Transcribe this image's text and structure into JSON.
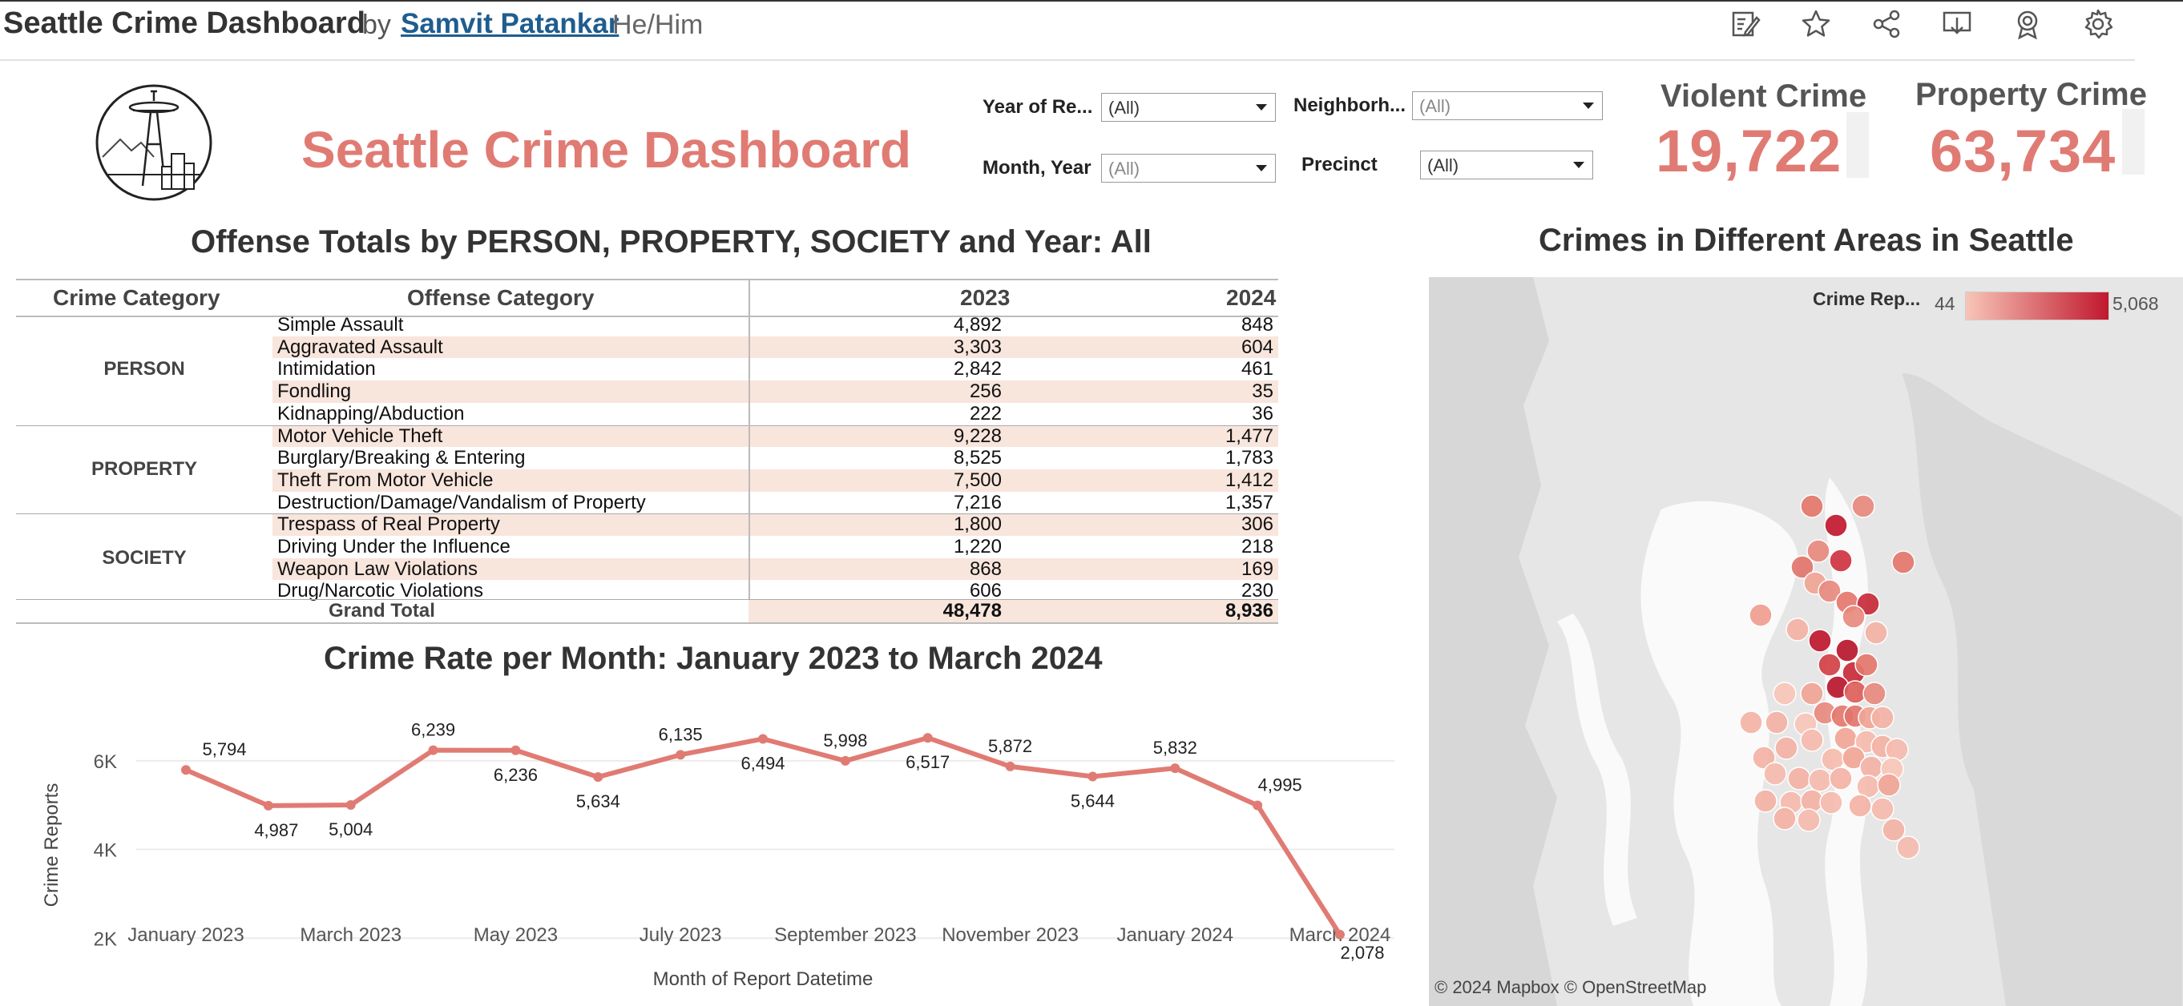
{
  "header": {
    "workbook_title": "Seattle Crime Dashboard",
    "by": "by",
    "author": "Samvit Patankar",
    "pronouns": "He/Him",
    "toolbar_icons": [
      "edit-icon",
      "star-icon",
      "share-icon",
      "download-icon",
      "badge-icon",
      "gear-icon"
    ]
  },
  "dashboard": {
    "title": "Seattle Crime Dashboard",
    "accent_color": "#e07b74"
  },
  "filters": {
    "year": {
      "label": "Year of Re...",
      "value": "(All)"
    },
    "month": {
      "label": "Month, Year",
      "value": "(All)"
    },
    "neighborhood": {
      "label": "Neighborh...",
      "value": "(All)"
    },
    "precinct": {
      "label": "Precinct",
      "value": "(All)"
    }
  },
  "kpis": {
    "violent": {
      "label": "Violent Crime",
      "value": "19,722"
    },
    "property": {
      "label": "Property Crime",
      "value": "63,734"
    }
  },
  "table": {
    "title": "Offense Totals by PERSON, PROPERTY, SOCIETY and Year: All",
    "headers": {
      "crime_category": "Crime Category",
      "offense_category": "Offense Category",
      "y2023": "2023",
      "y2024": "2024"
    },
    "groups": [
      {
        "category": "PERSON",
        "rows": [
          {
            "offense": "Simple Assault",
            "v2023": "4,892",
            "v2024": "848"
          },
          {
            "offense": "Aggravated Assault",
            "v2023": "3,303",
            "v2024": "604"
          },
          {
            "offense": "Intimidation",
            "v2023": "2,842",
            "v2024": "461"
          },
          {
            "offense": "Fondling",
            "v2023": "256",
            "v2024": "35"
          },
          {
            "offense": "Kidnapping/Abduction",
            "v2023": "222",
            "v2024": "36"
          }
        ]
      },
      {
        "category": "PROPERTY",
        "rows": [
          {
            "offense": "Motor Vehicle Theft",
            "v2023": "9,228",
            "v2024": "1,477"
          },
          {
            "offense": "Burglary/Breaking & Entering",
            "v2023": "8,525",
            "v2024": "1,783"
          },
          {
            "offense": "Theft From Motor Vehicle",
            "v2023": "7,500",
            "v2024": "1,412"
          },
          {
            "offense": "Destruction/Damage/Vandalism of Property",
            "v2023": "7,216",
            "v2024": "1,357"
          }
        ]
      },
      {
        "category": "SOCIETY",
        "rows": [
          {
            "offense": "Trespass of Real Property",
            "v2023": "1,800",
            "v2024": "306"
          },
          {
            "offense": "Driving Under the Influence",
            "v2023": "1,220",
            "v2024": "218"
          },
          {
            "offense": "Weapon Law Violations",
            "v2023": "868",
            "v2024": "169"
          },
          {
            "offense": "Drug/Narcotic Violations",
            "v2023": "606",
            "v2024": "230"
          }
        ]
      }
    ],
    "grand_total": {
      "label": "Grand Total",
      "v2023": "48,478",
      "v2024": "8,936"
    }
  },
  "chart_data": {
    "type": "line",
    "title": "Crime Rate per Month: January 2023 to March 2024",
    "xlabel": "Month of Report Datetime",
    "ylabel": "Crime Reports",
    "x": [
      "2023-01",
      "2023-02",
      "2023-03",
      "2023-04",
      "2023-05",
      "2023-06",
      "2023-07",
      "2023-08",
      "2023-09",
      "2023-10",
      "2023-11",
      "2023-12",
      "2024-01",
      "2024-02",
      "2024-03"
    ],
    "values": [
      5794,
      4987,
      5004,
      6239,
      6236,
      5634,
      6135,
      6494,
      5998,
      6517,
      5872,
      5644,
      5832,
      4995,
      2078
    ],
    "data_labels": [
      "5,794",
      "4,987",
      "5,004",
      "6,239",
      "6,236",
      "5,634",
      "6,135",
      "6,494",
      "5,998",
      "6,517",
      "5,872",
      "5,644",
      "5,832",
      "4,995",
      "2,078"
    ],
    "x_ticks": [
      "January 2023",
      "March 2023",
      "May 2023",
      "July 2023",
      "September 2023",
      "November 2023",
      "January 2024",
      "March 2024"
    ],
    "y_ticks": [
      "2K",
      "4K",
      "6K"
    ],
    "ylim": [
      1300,
      6900
    ],
    "grid": true,
    "line_color": "#e07b74"
  },
  "map": {
    "title": "Crimes in Different Areas in Seattle",
    "legend_label": "Crime Rep...",
    "legend_min": "44",
    "legend_max": "5,068",
    "attribution": "© 2024 Mapbox  © OpenStreetMap"
  }
}
